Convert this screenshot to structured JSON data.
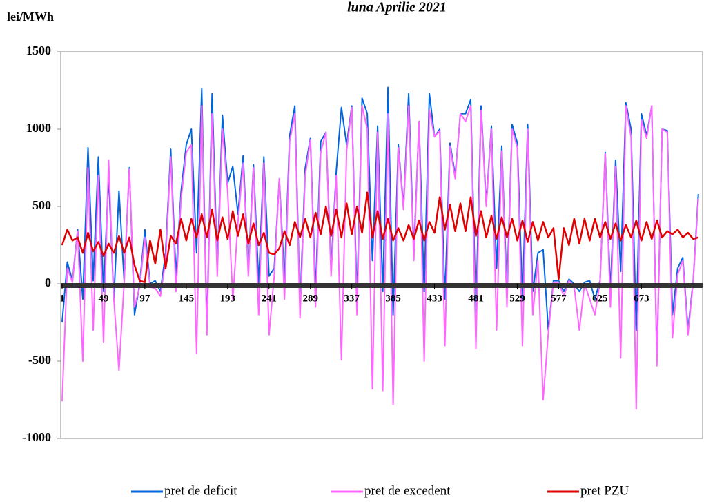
{
  "chart_data": {
    "type": "line",
    "title": "luna Aprilie 2021",
    "y_label": "lei/MWh",
    "ylim": [
      -1000,
      1500
    ],
    "yticks": [
      -1000,
      -500,
      0,
      500,
      1000,
      1500
    ],
    "xlim": [
      1,
      744
    ],
    "xticks": [
      1,
      49,
      97,
      145,
      193,
      241,
      289,
      337,
      385,
      433,
      481,
      529,
      577,
      625,
      673
    ],
    "legend": "bottom",
    "x": [
      1,
      7,
      13,
      19,
      25,
      31,
      37,
      43,
      49,
      55,
      61,
      67,
      73,
      79,
      85,
      91,
      97,
      103,
      109,
      115,
      121,
      127,
      133,
      139,
      145,
      151,
      157,
      163,
      169,
      175,
      181,
      187,
      193,
      199,
      205,
      211,
      217,
      223,
      229,
      235,
      241,
      247,
      253,
      259,
      265,
      271,
      277,
      283,
      289,
      295,
      301,
      307,
      313,
      319,
      325,
      331,
      337,
      343,
      349,
      355,
      361,
      367,
      373,
      379,
      385,
      391,
      397,
      403,
      409,
      415,
      421,
      427,
      433,
      439,
      445,
      451,
      457,
      463,
      469,
      475,
      481,
      487,
      493,
      499,
      505,
      511,
      517,
      523,
      529,
      535,
      541,
      547,
      553,
      559,
      565,
      571,
      577,
      583,
      589,
      595,
      601,
      607,
      613,
      619,
      625,
      631,
      637,
      643,
      649,
      655,
      661,
      667,
      673,
      679,
      685,
      691,
      697,
      703,
      709,
      715,
      721,
      727,
      733,
      739
    ],
    "series": [
      {
        "name": "pret de deficit",
        "color": "#0066e0",
        "values": [
          -250,
          140,
          20,
          350,
          -100,
          880,
          20,
          820,
          -50,
          700,
          -100,
          600,
          20,
          750,
          -200,
          0,
          350,
          0,
          20,
          -50,
          200,
          870,
          50,
          600,
          900,
          1000,
          200,
          1260,
          -300,
          1230,
          100,
          1090,
          650,
          760,
          450,
          830,
          100,
          770,
          0,
          820,
          50,
          100,
          680,
          20,
          960,
          1150,
          -150,
          750,
          940,
          -50,
          920,
          980,
          100,
          730,
          1140,
          900,
          1150,
          -100,
          1200,
          1100,
          150,
          1020,
          -50,
          1270,
          -200,
          900,
          500,
          1230,
          200,
          1050,
          -50,
          1230,
          950,
          1000,
          -100,
          910,
          700,
          1100,
          1100,
          1190,
          -200,
          1150,
          520,
          1020,
          100,
          890,
          -50,
          1030,
          910,
          -100,
          1030,
          -50,
          200,
          220,
          -300,
          20,
          20,
          -50,
          30,
          0,
          -50,
          10,
          20,
          -100,
          20,
          850,
          -50,
          800,
          80,
          1170,
          1000,
          -300,
          1100,
          960,
          1150,
          -500,
          1000,
          990,
          -200,
          100,
          170,
          -300,
          20,
          580
        ]
      },
      {
        "name": "pret de excedent",
        "color": "#ff66ff",
        "values": [
          -760,
          100,
          10,
          340,
          -500,
          750,
          -300,
          700,
          -380,
          800,
          -100,
          -560,
          10,
          740,
          -150,
          -20,
          300,
          -20,
          -30,
          -80,
          150,
          820,
          -50,
          550,
          850,
          900,
          -450,
          1150,
          -330,
          1100,
          50,
          1000,
          600,
          -100,
          400,
          780,
          50,
          750,
          -200,
          780,
          -330,
          50,
          680,
          -100,
          920,
          1100,
          -220,
          700,
          930,
          -150,
          850,
          980,
          50,
          700,
          -490,
          860,
          1140,
          -200,
          1150,
          1000,
          -680,
          980,
          -690,
          1100,
          -780,
          880,
          480,
          1150,
          150,
          1050,
          -500,
          1120,
          950,
          990,
          -400,
          890,
          680,
          1100,
          1050,
          1150,
          -420,
          1120,
          500,
          1000,
          -300,
          860,
          -150,
          1000,
          880,
          -400,
          1000,
          -200,
          150,
          -750,
          -320,
          10,
          10,
          -80,
          20,
          -20,
          -300,
          0,
          -100,
          -200,
          10,
          840,
          -150,
          760,
          -480,
          1150,
          950,
          -810,
          1060,
          940,
          1150,
          -530,
          1000,
          980,
          -350,
          60,
          150,
          -330,
          10,
          550
        ]
      },
      {
        "name": "pret PZU",
        "color": "#e00000",
        "values": [
          250,
          350,
          280,
          300,
          200,
          330,
          210,
          270,
          180,
          260,
          200,
          310,
          200,
          300,
          120,
          20,
          10,
          280,
          130,
          350,
          100,
          310,
          260,
          420,
          280,
          420,
          300,
          450,
          300,
          480,
          280,
          430,
          290,
          470,
          310,
          450,
          260,
          390,
          250,
          330,
          200,
          190,
          230,
          340,
          250,
          400,
          300,
          420,
          300,
          460,
          320,
          500,
          310,
          480,
          300,
          520,
          320,
          500,
          330,
          590,
          300,
          470,
          290,
          420,
          280,
          360,
          280,
          380,
          290,
          410,
          280,
          400,
          330,
          560,
          350,
          510,
          340,
          520,
          340,
          560,
          310,
          470,
          300,
          440,
          290,
          430,
          300,
          420,
          280,
          410,
          270,
          400,
          280,
          400,
          300,
          360,
          30,
          360,
          250,
          420,
          260,
          420,
          280,
          420,
          300,
          400,
          290,
          390,
          280,
          380,
          300,
          410,
          280,
          400,
          290,
          410,
          300,
          340,
          320,
          350,
          300,
          330,
          290,
          300
        ]
      }
    ]
  }
}
